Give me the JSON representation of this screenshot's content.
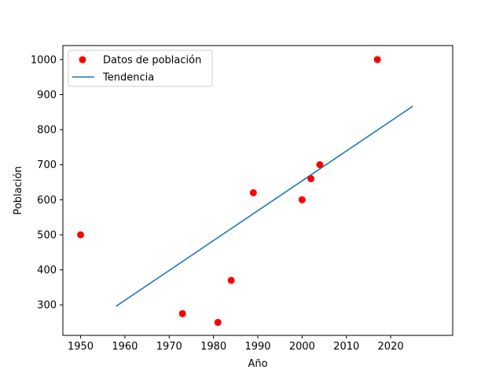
{
  "chart_data": {
    "type": "scatter",
    "title": "",
    "xlabel": "Año",
    "ylabel": "Población",
    "xlim": [
      1946,
      2034
    ],
    "ylim": [
      213,
      1040
    ],
    "xticks": [
      1950,
      1960,
      1970,
      1980,
      1990,
      2000,
      2010,
      2020
    ],
    "yticks": [
      300,
      400,
      500,
      600,
      700,
      800,
      900,
      1000
    ],
    "grid": false,
    "legend_position": "top-left",
    "series": [
      {
        "name": "Datos de población",
        "kind": "scatter",
        "color": "#ff0000",
        "points": [
          {
            "x": 1950,
            "y": 500
          },
          {
            "x": 1973,
            "y": 275
          },
          {
            "x": 1981,
            "y": 250
          },
          {
            "x": 1984,
            "y": 370
          },
          {
            "x": 1989,
            "y": 620
          },
          {
            "x": 2000,
            "y": 600
          },
          {
            "x": 2002,
            "y": 660
          },
          {
            "x": 2004,
            "y": 700
          },
          {
            "x": 2017,
            "y": 1000
          }
        ]
      },
      {
        "name": "Tendencia",
        "kind": "line",
        "color": "#1f77b4",
        "points": [
          {
            "x": 1958,
            "y": 296
          },
          {
            "x": 2025,
            "y": 867
          }
        ]
      }
    ]
  }
}
